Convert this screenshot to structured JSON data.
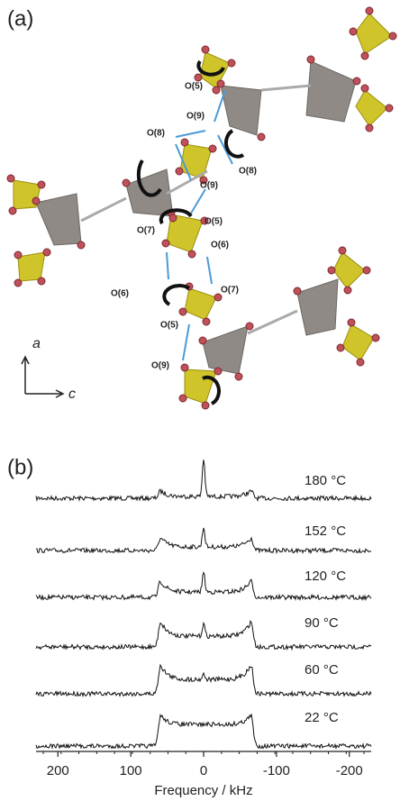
{
  "figure": {
    "panel_a": {
      "label": "(a)",
      "atom_labels": [
        "O(5)",
        "O(9)",
        "O(8)",
        "O(8)",
        "O(9)",
        "O(5)",
        "O(7)",
        "O(6)",
        "O(6)",
        "O(7)",
        "O(5)",
        "O(9)"
      ],
      "axis_labels": [
        "a",
        "c"
      ]
    },
    "panel_b": {
      "label": "(b)"
    }
  },
  "chart_data": {
    "type": "spectra",
    "xlabel": "Frequency / kHz",
    "xlim": [
      230,
      -230
    ],
    "xticks": [
      200,
      100,
      0,
      -100,
      -200
    ],
    "series": [
      {
        "name": "180 °C"
      },
      {
        "name": "152 °C"
      },
      {
        "name": "120 °C"
      },
      {
        "name": "90 °C"
      },
      {
        "name": "60 °C"
      },
      {
        "name": "22 °C"
      }
    ]
  }
}
